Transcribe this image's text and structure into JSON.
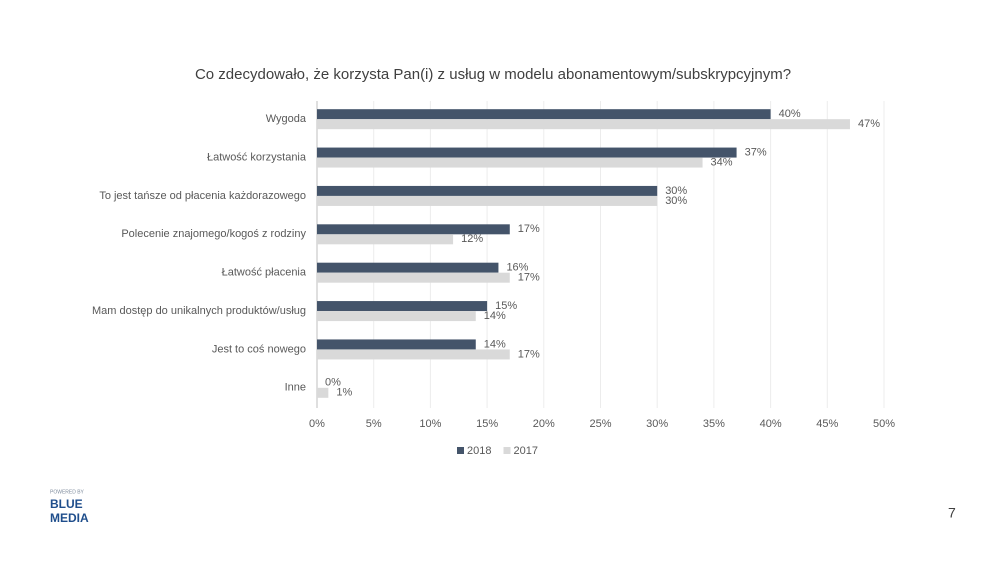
{
  "chart_data": {
    "type": "bar",
    "orientation": "horizontal",
    "title": "Co zdecydowało, że korzysta Pan(i) z usług w modelu abonamentowym/subskrypcyjnym?",
    "categories": [
      "Wygoda",
      "Łatwość korzystania",
      "To jest tańsze od płacenia każdorazowego",
      "Polecenie znajomego/kogoś z rodziny",
      "Łatwość płacenia",
      "Mam dostęp do unikalnych produktów/usług",
      "Jest to coś nowego",
      "Inne"
    ],
    "series": [
      {
        "name": "2018",
        "color": "#44546a",
        "values": [
          40,
          37,
          30,
          17,
          16,
          15,
          14,
          0
        ],
        "value_labels": [
          "40%",
          "37%",
          "30%",
          "17%",
          "16%",
          "15%",
          "14%",
          "0%"
        ]
      },
      {
        "name": "2017",
        "color": "#d9d9d9",
        "values": [
          47,
          34,
          30,
          12,
          17,
          14,
          17,
          1
        ],
        "value_labels": [
          "47%",
          "34%",
          "30%",
          "12%",
          "17%",
          "14%",
          "17%",
          "1%"
        ]
      }
    ],
    "xlim": [
      0,
      50
    ],
    "xticks": [
      {
        "value": 0,
        "label": "0%"
      },
      {
        "value": 5,
        "label": "5%"
      },
      {
        "value": 10,
        "label": "10%"
      },
      {
        "value": 15,
        "label": "15%"
      },
      {
        "value": 20,
        "label": "20%"
      },
      {
        "value": 25,
        "label": "25%"
      },
      {
        "value": 30,
        "label": "30%"
      },
      {
        "value": 35,
        "label": "35%"
      },
      {
        "value": 40,
        "label": "40%"
      },
      {
        "value": 45,
        "label": "45%"
      },
      {
        "value": 50,
        "label": "50%"
      }
    ],
    "grid": true,
    "legend": "bottom"
  },
  "logo": {
    "tagline": "POWERED BY",
    "line1": "BLUE",
    "line2": "MEDIA"
  },
  "page_number": "7"
}
